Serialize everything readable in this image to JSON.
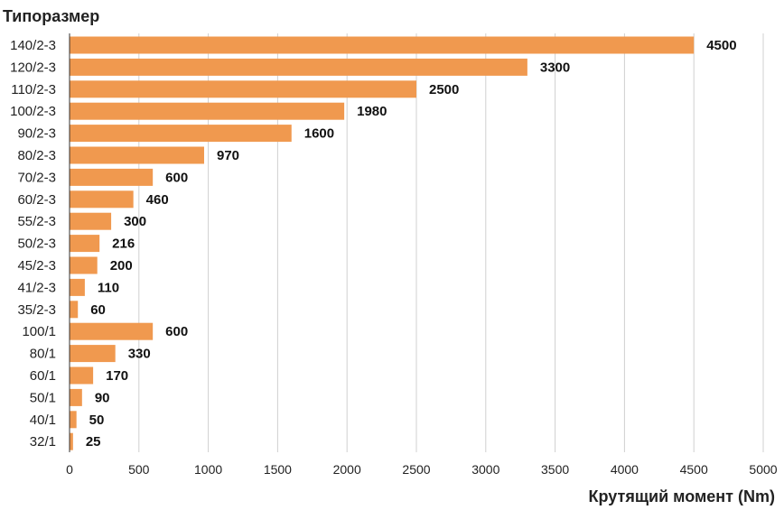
{
  "chart_data": {
    "type": "bar",
    "orientation": "horizontal",
    "title": "Типоразмер",
    "xlabel": "Крутящий момент (Nm)",
    "categories": [
      "140/2-3",
      "120/2-3",
      "110/2-3",
      "100/2-3",
      "90/2-3",
      "80/2-3",
      "70/2-3",
      "60/2-3",
      "55/2-3",
      "50/2-3",
      "45/2-3",
      "41/2-3",
      "35/2-3",
      "100/1",
      "80/1",
      "60/1",
      "50/1",
      "40/1",
      "32/1"
    ],
    "values": [
      4500,
      3300,
      2500,
      1980,
      1600,
      970,
      600,
      460,
      300,
      216,
      200,
      110,
      60,
      600,
      330,
      170,
      90,
      50,
      25
    ],
    "xlim": [
      0,
      5000
    ],
    "xticks": [
      0,
      500,
      1000,
      1500,
      2000,
      2500,
      3000,
      3500,
      4000,
      4500,
      5000
    ],
    "grid": true,
    "bar_color": "#F0994F"
  }
}
